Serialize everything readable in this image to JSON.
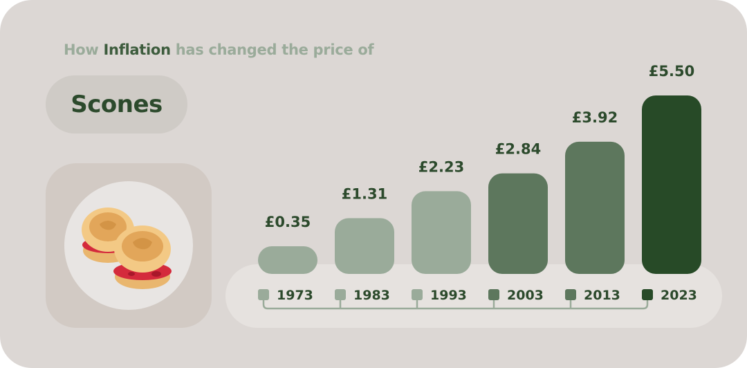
{
  "header": {
    "pre": "How",
    "highlight": "Inflation",
    "post": "has changed the price of"
  },
  "item": {
    "name": "Scones",
    "icon": "scones-plate-icon"
  },
  "colors": {
    "background": "#dcd7d4",
    "light_bar": "#9aab9a",
    "mid_bar": "#5d775d",
    "dark_bar": "#274a27",
    "text_dark": "#2c4a2c"
  },
  "chart_data": {
    "type": "bar",
    "categories": [
      "1973",
      "1983",
      "1993",
      "2003",
      "2013",
      "2023"
    ],
    "values": [
      0.35,
      1.31,
      2.23,
      2.84,
      3.92,
      5.5
    ],
    "value_labels": [
      "£0.35",
      "£1.31",
      "£2.23",
      "£2.84",
      "£3.92",
      "£5.50"
    ],
    "bar_colors": [
      "#9aab9a",
      "#9aab9a",
      "#9aab9a",
      "#5d775d",
      "#5d775d",
      "#274a27"
    ],
    "currency": "£",
    "ylim": [
      0,
      5.5
    ],
    "legend": "none",
    "grid": false
  }
}
